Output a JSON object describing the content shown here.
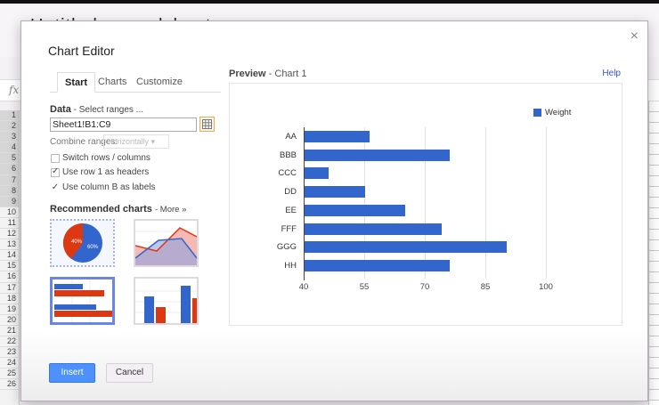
{
  "app": {
    "doc_title": "Untitled spreadsheet",
    "formula_label": "fx",
    "row_numbers": [
      "1",
      "2",
      "3",
      "4",
      "5",
      "6",
      "7",
      "8",
      "9",
      "10",
      "11",
      "12",
      "13",
      "14",
      "15",
      "16",
      "17",
      "18",
      "19",
      "20",
      "21",
      "22",
      "23",
      "24",
      "25",
      "26"
    ]
  },
  "dialog": {
    "title": "Chart Editor",
    "close_icon": "×",
    "tabs": [
      {
        "label": "Start",
        "active": true
      },
      {
        "label": "Charts",
        "active": false
      },
      {
        "label": "Customize",
        "active": false
      }
    ],
    "data_section": {
      "label": "Data",
      "separator": " - ",
      "select_ranges": "Select ranges ...",
      "range_value": "Sheet1!B1:C9",
      "combine_label": "Combine ranges:",
      "combine_value": "Horizontally ▾",
      "options": [
        {
          "label": "Switch rows / columns",
          "checked": false
        },
        {
          "label": "Use row 1 as headers",
          "checked": true
        },
        {
          "label": "Use column B as labels",
          "checked": true
        }
      ]
    },
    "recommended": {
      "label": "Recommended charts",
      "more_link": "- More »",
      "thumbnails": [
        {
          "type": "pie",
          "labels": [
            "40%",
            "60%"
          ]
        },
        {
          "type": "area"
        },
        {
          "type": "bar",
          "selected": true
        },
        {
          "type": "column"
        }
      ]
    },
    "preview": {
      "label": "Preview",
      "chart_name": " - Chart 1",
      "help": "Help"
    },
    "buttons": {
      "insert": "Insert",
      "cancel": "Cancel"
    }
  },
  "chart_data": {
    "type": "bar",
    "orientation": "horizontal",
    "title": "",
    "categories": [
      "AA",
      "BBB",
      "CCC",
      "DD",
      "EE",
      "FFF",
      "GGG",
      "HH"
    ],
    "series": [
      {
        "name": "Weight",
        "color": "#3366cc",
        "values": [
          56,
          76,
          46,
          55,
          65,
          74,
          90,
          76
        ]
      }
    ],
    "xlabel": "",
    "ylabel": "",
    "xlim": [
      40,
      100
    ],
    "x_ticks": [
      "40",
      "55",
      "70",
      "85",
      "100"
    ],
    "grid": true,
    "legend_position": "right"
  }
}
